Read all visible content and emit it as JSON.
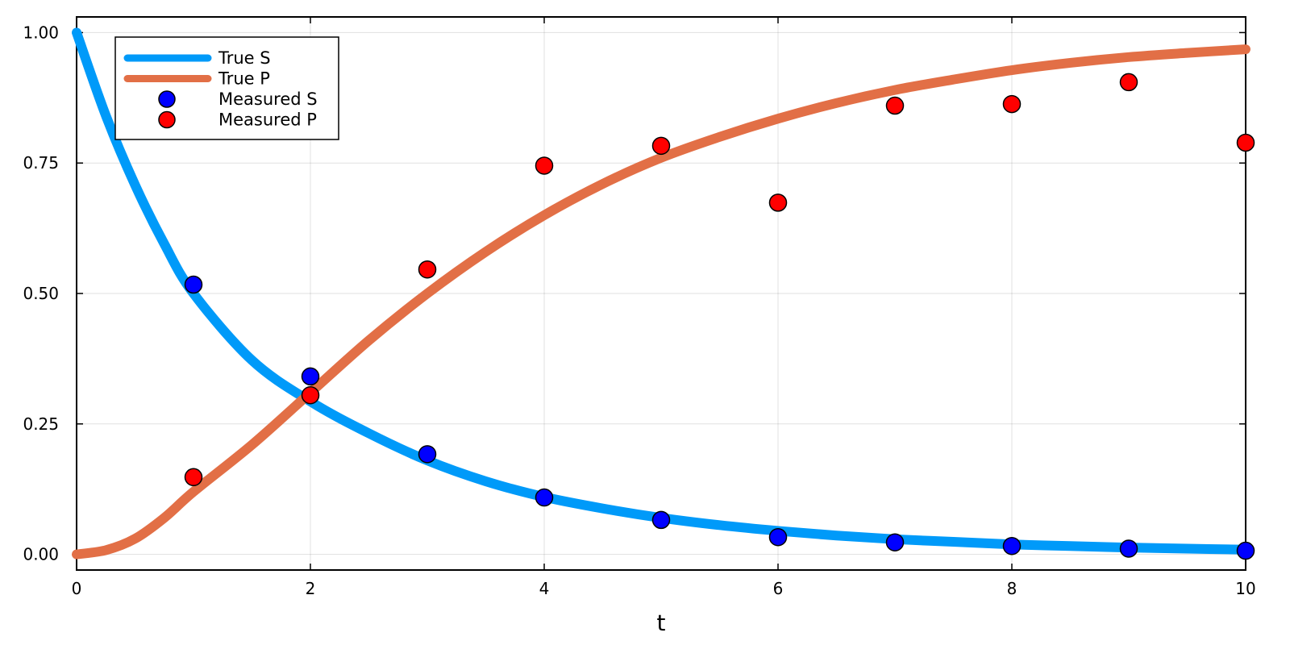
{
  "chart_data": {
    "type": "line",
    "title": "",
    "xlabel": "t",
    "ylabel": "",
    "xlim": [
      0,
      10
    ],
    "ylim": [
      -0.03,
      1.03
    ],
    "xticks": [
      0,
      2,
      4,
      6,
      8,
      10
    ],
    "xtick_labels": [
      "0",
      "2",
      "4",
      "6",
      "8",
      "10"
    ],
    "yticks": [
      0,
      0.25,
      0.5,
      0.75,
      1.0
    ],
    "ytick_labels": [
      "0.00",
      "0.25",
      "0.50",
      "0.75",
      "1.00"
    ],
    "grid": true,
    "legend_position": "top-left",
    "series": [
      {
        "name": "True S",
        "kind": "line",
        "color": "#009af9",
        "x": [
          0,
          0.25,
          0.5,
          0.75,
          1,
          1.5,
          2,
          2.5,
          3,
          3.5,
          4,
          4.5,
          5,
          5.5,
          6,
          6.5,
          7,
          7.5,
          8,
          8.5,
          9,
          9.5,
          10
        ],
        "y": [
          1.0,
          0.841,
          0.708,
          0.595,
          0.5,
          0.372,
          0.293,
          0.232,
          0.18,
          0.14,
          0.11,
          0.088,
          0.07,
          0.056,
          0.045,
          0.036,
          0.029,
          0.024,
          0.019,
          0.016,
          0.013,
          0.011,
          0.009
        ]
      },
      {
        "name": "True P",
        "kind": "line",
        "color": "#e26f46",
        "x": [
          0,
          0.25,
          0.5,
          0.75,
          1,
          1.5,
          2,
          2.5,
          3,
          3.5,
          4,
          4.5,
          5,
          5.5,
          6,
          6.5,
          7,
          7.5,
          8,
          8.5,
          9,
          9.5,
          10
        ],
        "y": [
          0.0,
          0.008,
          0.03,
          0.07,
          0.12,
          0.21,
          0.31,
          0.41,
          0.5,
          0.58,
          0.65,
          0.71,
          0.76,
          0.8,
          0.835,
          0.865,
          0.89,
          0.91,
          0.928,
          0.942,
          0.953,
          0.961,
          0.968
        ]
      },
      {
        "name": "Measured S",
        "kind": "scatter",
        "color": "#0000ff",
        "x": [
          1,
          2,
          3,
          4,
          5,
          6,
          7,
          8,
          9,
          10
        ],
        "y": [
          0.517,
          0.341,
          0.192,
          0.109,
          0.066,
          0.033,
          0.023,
          0.016,
          0.011,
          0.007
        ]
      },
      {
        "name": "Measured P",
        "kind": "scatter",
        "color": "#ff0000",
        "x": [
          1,
          2,
          3,
          4,
          5,
          6,
          7,
          8,
          9,
          10
        ],
        "y": [
          0.148,
          0.305,
          0.546,
          0.745,
          0.783,
          0.674,
          0.86,
          0.863,
          0.905,
          0.789
        ]
      }
    ]
  }
}
